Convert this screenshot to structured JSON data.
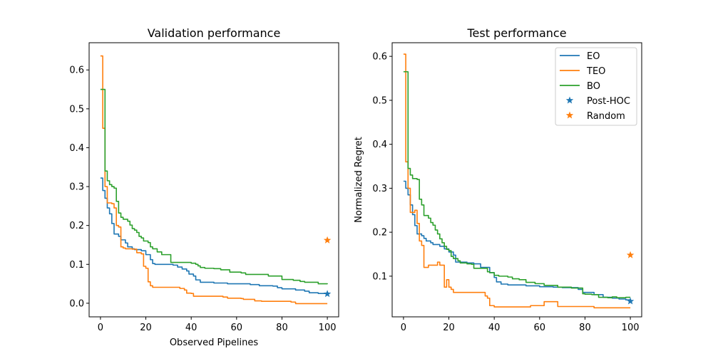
{
  "colors": {
    "EO": "#1f77b4",
    "TEO": "#ff7f0e",
    "BO": "#2ca02c",
    "Post-HOC": "#1f77b4",
    "Random": "#ff7f0e"
  },
  "chart_data": [
    {
      "type": "line",
      "title": "Validation performance",
      "xlabel": "Observed Pipelines",
      "ylabel": "",
      "xlim": [
        -5,
        105
      ],
      "ylim": [
        -0.035,
        0.67
      ],
      "xticks": [
        0,
        20,
        40,
        60,
        80,
        100
      ],
      "yticks": [
        0.0,
        0.1,
        0.2,
        0.3,
        0.4,
        0.5,
        0.6
      ],
      "ytick_labels": [
        "0.0",
        "0.1",
        "0.2",
        "0.3",
        "0.4",
        "0.5",
        "0.6"
      ],
      "legend": false,
      "series": [
        {
          "name": "EO",
          "kind": "step",
          "points": [
            [
              0,
              0.322
            ],
            [
              1,
              0.29
            ],
            [
              2,
              0.27
            ],
            [
              3,
              0.245
            ],
            [
              4,
              0.23
            ],
            [
              5,
              0.205
            ],
            [
              6,
              0.178
            ],
            [
              8,
              0.172
            ],
            [
              9,
              0.163
            ],
            [
              11,
              0.155
            ],
            [
              12,
              0.145
            ],
            [
              14,
              0.14
            ],
            [
              15,
              0.138
            ],
            [
              18,
              0.135
            ],
            [
              20,
              0.125
            ],
            [
              22,
              0.112
            ],
            [
              23,
              0.102
            ],
            [
              24,
              0.1
            ],
            [
              32,
              0.098
            ],
            [
              34,
              0.093
            ],
            [
              36,
              0.088
            ],
            [
              38,
              0.083
            ],
            [
              39,
              0.075
            ],
            [
              41,
              0.07
            ],
            [
              42,
              0.06
            ],
            [
              44,
              0.054
            ],
            [
              50,
              0.052
            ],
            [
              56,
              0.05
            ],
            [
              66,
              0.048
            ],
            [
              70,
              0.045
            ],
            [
              76,
              0.044
            ],
            [
              78,
              0.04
            ],
            [
              80,
              0.037
            ],
            [
              86,
              0.034
            ],
            [
              90,
              0.031
            ],
            [
              92,
              0.027
            ],
            [
              96,
              0.025
            ],
            [
              100,
              0.024
            ]
          ]
        },
        {
          "name": "TEO",
          "kind": "step",
          "points": [
            [
              0,
              0.636
            ],
            [
              1,
              0.45
            ],
            [
              2,
              0.3
            ],
            [
              3,
              0.258
            ],
            [
              5,
              0.256
            ],
            [
              6,
              0.245
            ],
            [
              7,
              0.2
            ],
            [
              8,
              0.196
            ],
            [
              9,
              0.145
            ],
            [
              10,
              0.142
            ],
            [
              11,
              0.14
            ],
            [
              14,
              0.139
            ],
            [
              16,
              0.13
            ],
            [
              18,
              0.127
            ],
            [
              19,
              0.095
            ],
            [
              20,
              0.09
            ],
            [
              21,
              0.055
            ],
            [
              22,
              0.045
            ],
            [
              23,
              0.041
            ],
            [
              35,
              0.038
            ],
            [
              37,
              0.034
            ],
            [
              38,
              0.026
            ],
            [
              40,
              0.025
            ],
            [
              41,
              0.018
            ],
            [
              54,
              0.016
            ],
            [
              56,
              0.013
            ],
            [
              62,
              0.012
            ],
            [
              63,
              0.01
            ],
            [
              68,
              0.006
            ],
            [
              71,
              0.005
            ],
            [
              84,
              0.003
            ],
            [
              86,
              -0.001
            ],
            [
              100,
              -0.001
            ]
          ]
        },
        {
          "name": "BO",
          "kind": "step",
          "points": [
            [
              0,
              0.55
            ],
            [
              1,
              0.55
            ],
            [
              2,
              0.34
            ],
            [
              3,
              0.315
            ],
            [
              4,
              0.305
            ],
            [
              5,
              0.3
            ],
            [
              6,
              0.296
            ],
            [
              7,
              0.262
            ],
            [
              8,
              0.232
            ],
            [
              9,
              0.221
            ],
            [
              10,
              0.216
            ],
            [
              12,
              0.211
            ],
            [
              13,
              0.201
            ],
            [
              14,
              0.192
            ],
            [
              15,
              0.188
            ],
            [
              16,
              0.182
            ],
            [
              17,
              0.172
            ],
            [
              18,
              0.168
            ],
            [
              19,
              0.16
            ],
            [
              21,
              0.156
            ],
            [
              22,
              0.145
            ],
            [
              23,
              0.14
            ],
            [
              25,
              0.132
            ],
            [
              27,
              0.125
            ],
            [
              31,
              0.105
            ],
            [
              40,
              0.103
            ],
            [
              42,
              0.1
            ],
            [
              43,
              0.096
            ],
            [
              44,
              0.092
            ],
            [
              46,
              0.09
            ],
            [
              50,
              0.089
            ],
            [
              53,
              0.086
            ],
            [
              57,
              0.08
            ],
            [
              62,
              0.078
            ],
            [
              64,
              0.074
            ],
            [
              74,
              0.07
            ],
            [
              80,
              0.061
            ],
            [
              85,
              0.059
            ],
            [
              88,
              0.056
            ],
            [
              90,
              0.054
            ],
            [
              96,
              0.05
            ],
            [
              100,
              0.049
            ]
          ]
        }
      ],
      "scatter": [
        {
          "name": "Post-HOC",
          "marker": "star",
          "points": [
            [
              100,
              0.024
            ]
          ]
        },
        {
          "name": "Random",
          "marker": "star",
          "points": [
            [
              100,
              0.162
            ]
          ]
        }
      ]
    },
    {
      "type": "line",
      "title": "Test performance",
      "xlabel": "",
      "ylabel": "Normalized Regret",
      "xlim": [
        -5,
        105
      ],
      "ylim": [
        0.0075,
        0.631
      ],
      "xticks": [
        0,
        20,
        40,
        60,
        80,
        100
      ],
      "yticks": [
        0.1,
        0.2,
        0.3,
        0.4,
        0.5,
        0.6
      ],
      "ytick_labels": [
        "0.1",
        "0.2",
        "0.3",
        "0.4",
        "0.5",
        "0.6"
      ],
      "legend": true,
      "legend_position": "upper-right",
      "series": [
        {
          "name": "EO",
          "kind": "step",
          "points": [
            [
              0,
              0.316
            ],
            [
              1,
              0.3
            ],
            [
              2,
              0.285
            ],
            [
              3,
              0.262
            ],
            [
              4,
              0.24
            ],
            [
              5,
              0.215
            ],
            [
              6,
              0.196
            ],
            [
              8,
              0.192
            ],
            [
              9,
              0.186
            ],
            [
              10,
              0.18
            ],
            [
              12,
              0.176
            ],
            [
              13,
              0.172
            ],
            [
              16,
              0.168
            ],
            [
              18,
              0.162
            ],
            [
              20,
              0.155
            ],
            [
              22,
              0.148
            ],
            [
              23,
              0.132
            ],
            [
              28,
              0.13
            ],
            [
              31,
              0.128
            ],
            [
              34,
              0.12
            ],
            [
              38,
              0.108
            ],
            [
              40,
              0.097
            ],
            [
              41,
              0.087
            ],
            [
              43,
              0.082
            ],
            [
              46,
              0.08
            ],
            [
              54,
              0.078
            ],
            [
              60,
              0.076
            ],
            [
              66,
              0.075
            ],
            [
              70,
              0.074
            ],
            [
              77,
              0.07
            ],
            [
              79,
              0.063
            ],
            [
              84,
              0.058
            ],
            [
              88,
              0.052
            ],
            [
              92,
              0.05
            ],
            [
              95,
              0.048
            ],
            [
              98,
              0.046
            ],
            [
              100,
              0.045
            ]
          ]
        },
        {
          "name": "TEO",
          "kind": "step",
          "points": [
            [
              0,
              0.605
            ],
            [
              1,
              0.36
            ],
            [
              2,
              0.3
            ],
            [
              3,
              0.245
            ],
            [
              5,
              0.25
            ],
            [
              6,
              0.22
            ],
            [
              7,
              0.18
            ],
            [
              8,
              0.17
            ],
            [
              9,
              0.12
            ],
            [
              10,
              0.12
            ],
            [
              11,
              0.125
            ],
            [
              15,
              0.132
            ],
            [
              16,
              0.125
            ],
            [
              18,
              0.075
            ],
            [
              19,
              0.092
            ],
            [
              20,
              0.075
            ],
            [
              21,
              0.07
            ],
            [
              22,
              0.063
            ],
            [
              36,
              0.055
            ],
            [
              37,
              0.05
            ],
            [
              38,
              0.033
            ],
            [
              39,
              0.033
            ],
            [
              40,
              0.03
            ],
            [
              54,
              0.03
            ],
            [
              56,
              0.033
            ],
            [
              60,
              0.033
            ],
            [
              62,
              0.042
            ],
            [
              67,
              0.042
            ],
            [
              68,
              0.031
            ],
            [
              84,
              0.028
            ],
            [
              100,
              0.028
            ]
          ]
        },
        {
          "name": "BO",
          "kind": "step",
          "points": [
            [
              0,
              0.565
            ],
            [
              1,
              0.565
            ],
            [
              2,
              0.345
            ],
            [
              3,
              0.33
            ],
            [
              4,
              0.322
            ],
            [
              6,
              0.32
            ],
            [
              7,
              0.275
            ],
            [
              8,
              0.262
            ],
            [
              9,
              0.238
            ],
            [
              11,
              0.232
            ],
            [
              12,
              0.222
            ],
            [
              13,
              0.216
            ],
            [
              14,
              0.205
            ],
            [
              15,
              0.196
            ],
            [
              16,
              0.185
            ],
            [
              17,
              0.176
            ],
            [
              18,
              0.168
            ],
            [
              19,
              0.161
            ],
            [
              20,
              0.158
            ],
            [
              21,
              0.145
            ],
            [
              22,
              0.14
            ],
            [
              24,
              0.135
            ],
            [
              25,
              0.13
            ],
            [
              28,
              0.128
            ],
            [
              30,
              0.127
            ],
            [
              31,
              0.118
            ],
            [
              37,
              0.11
            ],
            [
              38,
              0.108
            ],
            [
              40,
              0.102
            ],
            [
              42,
              0.1
            ],
            [
              46,
              0.098
            ],
            [
              48,
              0.094
            ],
            [
              51,
              0.092
            ],
            [
              54,
              0.086
            ],
            [
              58,
              0.083
            ],
            [
              62,
              0.079
            ],
            [
              68,
              0.075
            ],
            [
              74,
              0.073
            ],
            [
              79,
              0.06
            ],
            [
              80,
              0.059
            ],
            [
              83,
              0.058
            ],
            [
              86,
              0.052
            ],
            [
              90,
              0.051
            ],
            [
              92,
              0.053
            ],
            [
              94,
              0.051
            ],
            [
              98,
              0.052
            ],
            [
              100,
              0.052
            ]
          ]
        }
      ],
      "scatter": [
        {
          "name": "Post-HOC",
          "marker": "star",
          "points": [
            [
              100,
              0.043
            ]
          ]
        },
        {
          "name": "Random",
          "marker": "star",
          "points": [
            [
              100,
              0.148
            ]
          ]
        }
      ]
    }
  ]
}
